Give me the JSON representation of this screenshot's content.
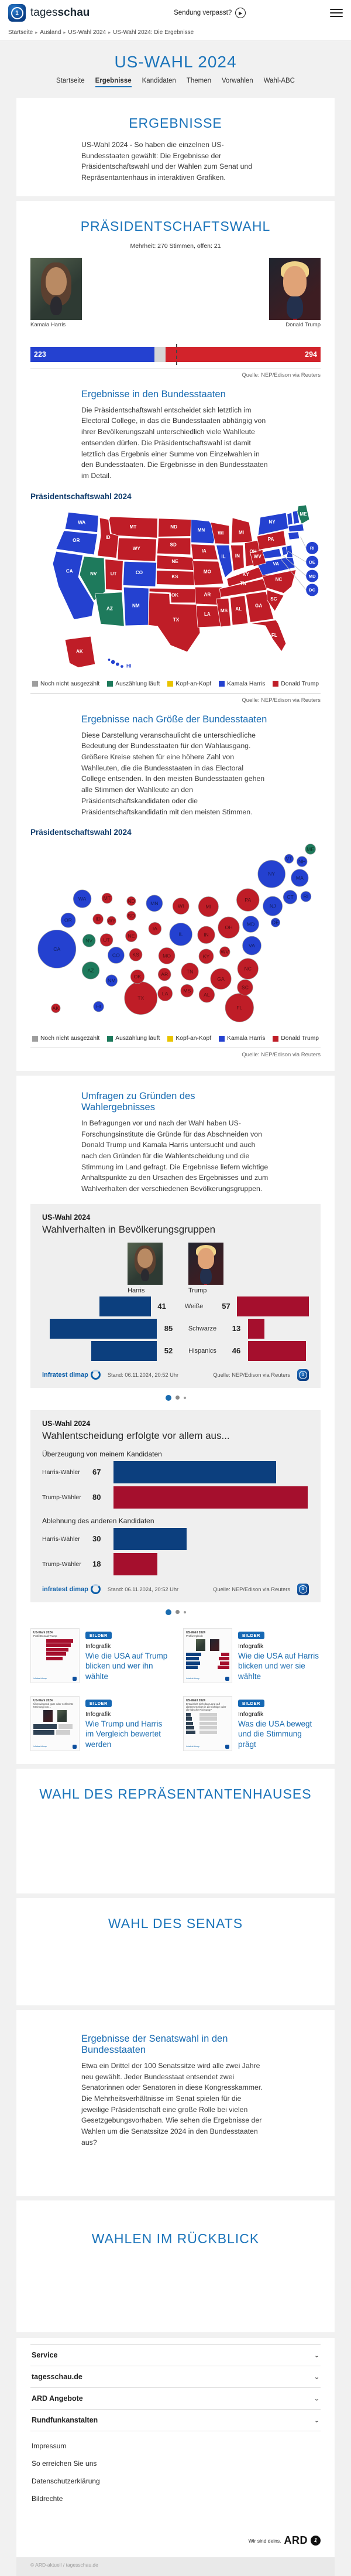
{
  "colors": {
    "harris_blue": "#2441d0",
    "trump_red": "#d2232b",
    "map_red": "#bf1d27",
    "counting_green": "#1e7a5c",
    "tossup_yellow": "#e9c400",
    "not_counted_gray": "#9e9e9e",
    "chart_blue": "#0c3f7e",
    "chart_red": "#a50f2d",
    "accent_blue": "#1a6cb0"
  },
  "header": {
    "logo_regular": "tages",
    "logo_bold": "schau",
    "missed_label": "Sendung verpasst?"
  },
  "breadcrumb": {
    "separator": "▸",
    "items": [
      "Startseite",
      "Ausland",
      "US-Wahl 2024",
      "US-Wahl 2024: Die Ergebnisse"
    ]
  },
  "hero": {
    "title": "US-WAHL 2024"
  },
  "nav_tabs": {
    "items": [
      {
        "label": "Startseite",
        "active": false
      },
      {
        "label": "Ergebnisse",
        "active": true
      },
      {
        "label": "Kandidaten",
        "active": false
      },
      {
        "label": "Themen",
        "active": false
      },
      {
        "label": "Vorwahlen",
        "active": false
      },
      {
        "label": "Wahl-ABC",
        "active": false
      }
    ]
  },
  "sections": {
    "ergebnisse": {
      "title": "ERGEBNISSE",
      "text": "US-Wahl 2024 - So haben die einzelnen US-Bundesstaaten gewählt: Die Ergebnisse der Präsidentschaftswahl und der Wahlen zum Senat und Repräsentantenhaus in interaktiven Grafiken."
    },
    "praesident": {
      "title": "PRÄSIDENTSCHAFTSWAHL",
      "majority_note": "Mehrheit: 270 Stimmen, offen: 21",
      "harris_name": "Kamala Harris",
      "trump_name": "Donald Trump",
      "harris_votes": "223",
      "trump_votes": "294",
      "source": "Quelle: NEP/Edison via Reuters",
      "bundesstaaten_title": "Ergebnisse in den Bundesstaaten",
      "bundesstaaten_text": "Die Präsidentschaftswahl entscheidet sich letztlich im Electoral College, in das die Bundesstaaten abhängig von ihrer Bevölkerungszahl unterschiedlich viele Wahlleute entsenden dürfen. Die Präsidentschaftswahl ist damit letztlich das Ergebnis einer Summe von Einzelwahlen in den Bundesstaaten. Die Ergebnisse in den Bundesstaaten im Detail.",
      "map_label": "Präsidentschaftswahl 2024",
      "groesse_title": "Ergebnisse nach Größe der Bundesstaaten",
      "groesse_text": "Diese Darstellung veranschaulicht die unterschiedliche Bedeutung der Bundesstaaten für den Wahlausgang. Größere Kreise stehen für eine höhere Zahl von Wahlleuten, die die Bundesstaaten in das Electoral College entsenden. In den meisten Bundesstaaten gehen alle Stimmen der Wahlleute an den Präsidentschaftskandidaten oder die Präsidentschaftskandidatin mit den meisten Stimmen.",
      "bubble_label": "Präsidentschaftswahl 2024"
    },
    "umfragen": {
      "title": "Umfragen zu Gründen des Wahlergebnisses",
      "text": "In Befragungen vor und nach der Wahl haben US-Forschungsinstitute die Gründe für das Abschneiden von Donald Trump und Kamala Harris untersucht und auch nach den Gründen für die Wahlentscheidung und die Stimmung im Land gefragt. Die Ergebnisse liefern wichtige Anhaltspunkte zu den Ursachen des Ergebnisses und zum Wahlverhalten der verschiedenen Bevölkerungsgruppen."
    },
    "repraesentantenhaus": {
      "title": "WAHL DES REPRÄSENTANTENHAUSES"
    },
    "senat": {
      "title": "WAHL DES SENATS"
    },
    "senatswahl": {
      "title": "Ergebnisse der Senatswahl in den Bundesstaaten",
      "text": "Etwa ein Drittel der 100 Senatssitze wird alle zwei Jahre neu gewählt. Jeder Bundesstaat entsendet zwei Senatorinnen oder Senatoren in diese Kongresskammer. Die Mehrheitsverhältnisse im Senat spielen für die jeweilige Präsidentschaft eine große Rolle bei vielen Gesetzgebungsvorhaben. Wie sehen die Ergebnisse der Wahlen um die Senatssitze 2024 in den Bundesstaaten aus?"
    },
    "rueckblick": {
      "title": "WAHLEN IM RÜCKBLICK"
    }
  },
  "legend": {
    "items": [
      {
        "label": "Noch nicht ausgezählt",
        "color": "#9e9e9e"
      },
      {
        "label": "Auszählung läuft",
        "color": "#1e7a5c"
      },
      {
        "label": "Kopf-an-Kopf",
        "color": "#e9c400"
      },
      {
        "label": "Kamala Harris",
        "color": "#2441d0"
      },
      {
        "label": "Donald Trump",
        "color": "#bf1d27"
      }
    ]
  },
  "chart_data": [
    {
      "type": "map",
      "title": "Präsidentschaftswahl 2024",
      "source": "Quelle: NEP/Edison via Reuters",
      "electoral_bar": {
        "harris": 223,
        "trump": 294,
        "open": 21,
        "majority": 270,
        "total": 538
      },
      "legend": [
        "Noch nicht ausgezählt",
        "Auszählung läuft",
        "Kopf-an-Kopf",
        "Kamala Harris",
        "Donald Trump"
      ],
      "harris_states": [
        "WA",
        "OR",
        "CA",
        "HI",
        "MN",
        "IL",
        "CO",
        "NM",
        "VA",
        "NY",
        "VT",
        "NH",
        "MA",
        "CT",
        "RI",
        "NJ",
        "DE",
        "MD",
        "DC"
      ],
      "trump_states": [
        "ID",
        "MT",
        "WY",
        "UT",
        "ND",
        "SD",
        "NE",
        "KS",
        "OK",
        "TX",
        "IA",
        "MO",
        "AR",
        "LA",
        "WI",
        "MI",
        "IN",
        "OH",
        "KY",
        "TN",
        "MS",
        "AL",
        "GA",
        "FL",
        "SC",
        "NC",
        "WV",
        "PA",
        "AK"
      ],
      "counting_states": [
        "ME",
        "NV",
        "AZ"
      ],
      "callouts": [
        "RI",
        "DE",
        "MD",
        "DC"
      ]
    },
    {
      "type": "bubble",
      "title": "Präsidentschaftswahl 2024",
      "source": "Quelle: NEP/Edison via Reuters",
      "states": [
        {
          "a": "CA",
          "ev": 54,
          "w": "h",
          "x": 47,
          "y": 193
        },
        {
          "a": "TX",
          "ev": 40,
          "w": "t",
          "x": 196,
          "y": 280
        },
        {
          "a": "FL",
          "ev": 30,
          "w": "t",
          "x": 371,
          "y": 297
        },
        {
          "a": "NY",
          "ev": 28,
          "w": "h",
          "x": 428,
          "y": 60
        },
        {
          "a": "PA",
          "ev": 19,
          "w": "t",
          "x": 386,
          "y": 106
        },
        {
          "a": "IL",
          "ev": 19,
          "w": "h",
          "x": 267,
          "y": 167
        },
        {
          "a": "OH",
          "ev": 17,
          "w": "t",
          "x": 352,
          "y": 155
        },
        {
          "a": "GA",
          "ev": 16,
          "w": "t",
          "x": 338,
          "y": 246
        },
        {
          "a": "NC",
          "ev": 16,
          "w": "t",
          "x": 386,
          "y": 228
        },
        {
          "a": "MI",
          "ev": 15,
          "w": "t",
          "x": 316,
          "y": 118
        },
        {
          "a": "NJ",
          "ev": 14,
          "w": "h",
          "x": 430,
          "y": 117
        },
        {
          "a": "VA",
          "ev": 13,
          "w": "h",
          "x": 393,
          "y": 187
        },
        {
          "a": "WA",
          "ev": 12,
          "w": "h",
          "x": 92,
          "y": 104
        },
        {
          "a": "AZ",
          "ev": 11,
          "w": "c",
          "x": 107,
          "y": 231
        },
        {
          "a": "MA",
          "ev": 11,
          "w": "h",
          "x": 478,
          "y": 67
        },
        {
          "a": "TN",
          "ev": 11,
          "w": "t",
          "x": 283,
          "y": 233
        },
        {
          "a": "IN",
          "ev": 11,
          "w": "t",
          "x": 312,
          "y": 168
        },
        {
          "a": "MD",
          "ev": 10,
          "w": "h",
          "x": 391,
          "y": 149
        },
        {
          "a": "MN",
          "ev": 10,
          "w": "h",
          "x": 220,
          "y": 112
        },
        {
          "a": "MO",
          "ev": 10,
          "w": "t",
          "x": 242,
          "y": 205
        },
        {
          "a": "WI",
          "ev": 10,
          "w": "t",
          "x": 267,
          "y": 117
        },
        {
          "a": "CO",
          "ev": 10,
          "w": "h",
          "x": 152,
          "y": 204
        },
        {
          "a": "AL",
          "ev": 9,
          "w": "t",
          "x": 313,
          "y": 274
        },
        {
          "a": "SC",
          "ev": 9,
          "w": "t",
          "x": 381,
          "y": 261
        },
        {
          "a": "KY",
          "ev": 8,
          "w": "t",
          "x": 312,
          "y": 206
        },
        {
          "a": "LA",
          "ev": 8,
          "w": "t",
          "x": 239,
          "y": 272
        },
        {
          "a": "OR",
          "ev": 8,
          "w": "h",
          "x": 67,
          "y": 142
        },
        {
          "a": "OK",
          "ev": 7,
          "w": "t",
          "x": 190,
          "y": 242
        },
        {
          "a": "CT",
          "ev": 7,
          "w": "h",
          "x": 461,
          "y": 101
        },
        {
          "a": "UT",
          "ev": 6,
          "w": "t",
          "x": 135,
          "y": 177
        },
        {
          "a": "IA",
          "ev": 6,
          "w": "t",
          "x": 221,
          "y": 157
        },
        {
          "a": "NV",
          "ev": 6,
          "w": "c",
          "x": 104,
          "y": 178
        },
        {
          "a": "AR",
          "ev": 6,
          "w": "t",
          "x": 238,
          "y": 238
        },
        {
          "a": "MS",
          "ev": 6,
          "w": "t",
          "x": 278,
          "y": 267
        },
        {
          "a": "KS",
          "ev": 6,
          "w": "t",
          "x": 187,
          "y": 203
        },
        {
          "a": "NM",
          "ev": 5,
          "w": "h",
          "x": 144,
          "y": 249
        },
        {
          "a": "NE",
          "ev": 5,
          "w": "t",
          "x": 179,
          "y": 170
        },
        {
          "a": "WV",
          "ev": 4,
          "w": "t",
          "x": 345,
          "y": 198
        },
        {
          "a": "ID",
          "ev": 4,
          "w": "t",
          "x": 120,
          "y": 140
        },
        {
          "a": "HI",
          "ev": 4,
          "w": "h",
          "x": 121,
          "y": 295
        },
        {
          "a": "NH",
          "ev": 4,
          "w": "h",
          "x": 482,
          "y": 38
        },
        {
          "a": "ME",
          "ev": 4,
          "w": "c",
          "x": 497,
          "y": 16
        },
        {
          "a": "RI",
          "ev": 4,
          "w": "h",
          "x": 489,
          "y": 100
        },
        {
          "a": "MT",
          "ev": 4,
          "w": "t",
          "x": 136,
          "y": 103
        },
        {
          "a": "DE",
          "ev": 3,
          "w": "h",
          "x": 435,
          "y": 146
        },
        {
          "a": "SD",
          "ev": 3,
          "w": "t",
          "x": 179,
          "y": 134
        },
        {
          "a": "ND",
          "ev": 3,
          "w": "t",
          "x": 179,
          "y": 108
        },
        {
          "a": "AK",
          "ev": 3,
          "w": "t",
          "x": 45,
          "y": 298
        },
        {
          "a": "VT",
          "ev": 3,
          "w": "h",
          "x": 459,
          "y": 33
        },
        {
          "a": "WY",
          "ev": 3,
          "w": "t",
          "x": 144,
          "y": 143
        }
      ]
    },
    {
      "type": "bar",
      "subtype": "mirrored",
      "kicker": "US-Wahl 2024",
      "title": "Wahlverhalten in Bevölkerungsgruppen",
      "left_label": "Harris",
      "right_label": "Trump",
      "categories": [
        "Weiße",
        "Schwarze",
        "Hispanics"
      ],
      "series": [
        {
          "name": "Harris",
          "color": "#0c3f7e",
          "values": [
            41,
            85,
            52
          ]
        },
        {
          "name": "Trump",
          "color": "#a50f2d",
          "values": [
            57,
            13,
            46
          ]
        }
      ],
      "provider": "infratest dimap",
      "stand": "Stand:  06.11.2024, 20:52 Uhr",
      "source": "Quelle: NEP/Edison via Reuters"
    },
    {
      "type": "bar",
      "subtype": "grouped-horizontal",
      "kicker": "US-Wahl 2024",
      "title": "Wahlentscheidung erfolgte vor allem aus...",
      "xmax": 80,
      "groups": [
        {
          "label": "Überzeugung von meinem Kandidaten",
          "rows": [
            {
              "label": "Harris-Wähler",
              "value": 67,
              "color": "#0c3f7e"
            },
            {
              "label": "Trump-Wähler",
              "value": 80,
              "color": "#a50f2d"
            }
          ]
        },
        {
          "label": "Ablehnung des anderen Kandidaten",
          "rows": [
            {
              "label": "Harris-Wähler",
              "value": 30,
              "color": "#0c3f7e"
            },
            {
              "label": "Trump-Wähler",
              "value": 18,
              "color": "#a50f2d"
            }
          ]
        }
      ],
      "provider": "infratest dimap",
      "stand": "Stand:  06.11.2024, 20:52 Uhr",
      "source": "Quelle: NEP/Edison via Reuters"
    }
  ],
  "teasers": [
    {
      "badge": "BILDER",
      "category": "Infografik",
      "title": "Wie die USA auf Trump blicken und wer ihn wählte",
      "thumb_kicker": "US-Wahl 2024",
      "thumb_title": "Profil Donald Trump",
      "thumb_type": "red-bars"
    },
    {
      "badge": "BILDER",
      "category": "Infografik",
      "title": "Wie die USA auf Harris blicken und wer sie wählte",
      "thumb_kicker": "US-Wahl 2024",
      "thumb_title": "Profilvergleich",
      "thumb_type": "compare-bars"
    },
    {
      "badge": "BILDER",
      "category": "Infografik",
      "title": "Wie Trump und Harris im Vergleich bewertet werden",
      "thumb_kicker": "US-Wahl 2024",
      "thumb_title": "Überwiegend gute oder schlechte Meinung von...",
      "thumb_type": "rating-bars"
    },
    {
      "badge": "BILDER",
      "category": "Infografik",
      "title": "Was die USA bewegt und die Stimmung prägt",
      "thumb_kicker": "US-Wahl 2024",
      "thumb_title": "Entwickelt sich das Land auf diesem Gebiet in die richtige oder die falsche Richtung?",
      "thumb_type": "mood-bars"
    }
  ],
  "footer": {
    "accordions": [
      "Service",
      "tagesschau.de",
      "ARD Angebote",
      "Rundfunkanstalten"
    ],
    "links": [
      "Impressum",
      "So erreichen Sie uns",
      "Datenschutzerklärung",
      "Bildrechte"
    ],
    "ard_claim": "Wir sind deins.",
    "ard_brand": "ARD",
    "copyright": "© ARD-aktuell / tagesschau.de"
  }
}
